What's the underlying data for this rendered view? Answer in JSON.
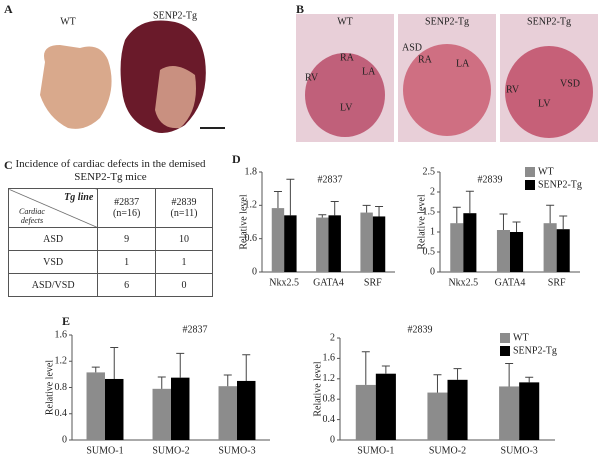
{
  "panel_labels": [
    "A",
    "B",
    "C",
    "D",
    "E"
  ],
  "photo_a": {
    "labels": [
      "WT",
      "SENP2-Tg"
    ]
  },
  "photo_b": {
    "images": [
      {
        "title": "WT",
        "marks": [
          "RA",
          "LA",
          "RV",
          "LV"
        ]
      },
      {
        "title": "SENP2-Tg",
        "marks": [
          "ASD",
          "RA",
          "LA"
        ]
      },
      {
        "title": "SENP2-Tg",
        "marks": [
          "RV",
          "VSD",
          "LV"
        ]
      }
    ]
  },
  "table": {
    "title": "Incidence of cardiac defects in the demised SENP2-Tg mice",
    "corner_top": "Tg line",
    "corner_bottom": "Cardiac defects",
    "columns": [
      {
        "line": "#2837",
        "n": "(n=16)"
      },
      {
        "line": "#2839",
        "n": "(n=11)"
      }
    ],
    "rows": [
      [
        "ASD",
        9,
        10
      ],
      [
        "VSD",
        1,
        1
      ],
      [
        "ASD/VSD",
        6,
        0
      ]
    ]
  },
  "chart_data": [
    {
      "type": "bar",
      "title": "#2837",
      "y_label": "Relative level",
      "categories": [
        "Nkx2.5",
        "GATA4",
        "SRF"
      ],
      "series": [
        {
          "color": "#8c8c8c",
          "values": [
            1.15,
            0.98,
            1.07
          ],
          "errors": [
            0.3,
            0.05,
            0.13
          ]
        },
        {
          "color": "#000000",
          "values": [
            1.02,
            1.02,
            1.0
          ],
          "errors": [
            0.65,
            0.25,
            0.18
          ]
        }
      ],
      "ylim": [
        0,
        1.8
      ],
      "yticks": [
        0,
        0.6,
        1.2,
        1.8
      ]
    },
    {
      "type": "bar",
      "title": "#2839",
      "y_label": "Relative level",
      "categories": [
        "Nkx2.5",
        "GATA4",
        "SRF"
      ],
      "legend": "top-right",
      "series": [
        {
          "name": "WT",
          "color": "#8c8c8c",
          "values": [
            1.22,
            1.05,
            1.22
          ],
          "errors": [
            0.4,
            0.4,
            0.45
          ]
        },
        {
          "name": "SENP2-Tg",
          "color": "#000000",
          "values": [
            1.47,
            1.0,
            1.07
          ],
          "errors": [
            0.55,
            0.25,
            0.33
          ]
        }
      ],
      "ylim": [
        0,
        2.5
      ],
      "yticks": [
        0,
        0.5,
        1,
        1.5,
        2,
        2.5
      ]
    },
    {
      "type": "bar",
      "title": "#2837",
      "y_label": "Relative level",
      "categories": [
        "SUMO-1",
        "SUMO-2",
        "SUMO-3"
      ],
      "series": [
        {
          "color": "#8c8c8c",
          "values": [
            1.03,
            0.78,
            0.82
          ],
          "errors": [
            0.08,
            0.18,
            0.17
          ]
        },
        {
          "color": "#000000",
          "values": [
            0.93,
            0.95,
            0.9
          ],
          "errors": [
            0.48,
            0.37,
            0.4
          ]
        }
      ],
      "ylim": [
        0,
        1.6
      ],
      "yticks": [
        0,
        0.4,
        0.8,
        1.2,
        1.6
      ]
    },
    {
      "type": "bar",
      "title": "#2839",
      "y_label": "Relative level",
      "categories": [
        "SUMO-1",
        "SUMO-2",
        "SUMO-3"
      ],
      "legend": "top-right",
      "series": [
        {
          "name": "WT",
          "color": "#8c8c8c",
          "values": [
            1.08,
            0.93,
            1.05
          ],
          "errors": [
            0.65,
            0.35,
            0.45
          ]
        },
        {
          "name": "SENP2-Tg",
          "color": "#000000",
          "values": [
            1.3,
            1.18,
            1.13
          ],
          "errors": [
            0.15,
            0.22,
            0.1
          ]
        }
      ],
      "ylim": [
        0,
        2
      ],
      "yticks": [
        0,
        0.4,
        0.8,
        1.2,
        1.6,
        2
      ]
    }
  ]
}
